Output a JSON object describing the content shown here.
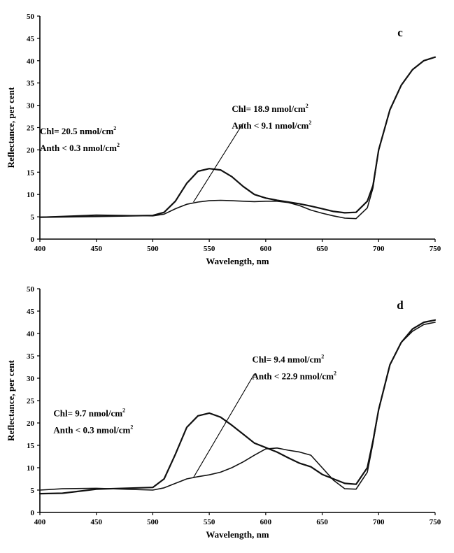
{
  "chart_data": [
    {
      "type": "line",
      "panel_letter": "c",
      "xlabel": "Wavelength, nm",
      "ylabel": "Reflectance, per cent",
      "xlim": [
        400,
        750
      ],
      "ylim": [
        0,
        50
      ],
      "xticks": [
        400,
        450,
        500,
        550,
        600,
        650,
        700,
        750
      ],
      "yticks": [
        0,
        5,
        10,
        15,
        20,
        25,
        30,
        35,
        40,
        45,
        50
      ],
      "grid": false,
      "annotations": [
        {
          "chl": "Chl= 20.5 nmol/cm",
          "anth": "Anth < 0.3 nmol/cm",
          "sup": "2",
          "x": 400,
          "y": 23.5
        },
        {
          "chl": "Chl= 18.9 nmol/cm",
          "anth": "Anth < 9.1 nmol/cm",
          "sup": "2",
          "x": 570,
          "y": 28.5
        }
      ],
      "series": [
        {
          "x": [
            400,
            450,
            500,
            510,
            520,
            530,
            540,
            550,
            560,
            570,
            580,
            590,
            600,
            610,
            620,
            630,
            640,
            650,
            660,
            670,
            680,
            690,
            695,
            700,
            710,
            720,
            730,
            740,
            750
          ],
          "y": [
            4.9,
            5.1,
            5.3,
            6.0,
            8.5,
            12.5,
            15.2,
            15.8,
            15.5,
            14.0,
            11.8,
            10.0,
            9.2,
            8.7,
            8.3,
            7.9,
            7.4,
            6.8,
            6.2,
            5.9,
            6.0,
            8.5,
            12.0,
            20.0,
            29.0,
            34.5,
            38.0,
            40.0,
            40.8
          ],
          "thin": false
        },
        {
          "x": [
            400,
            450,
            500,
            510,
            520,
            530,
            540,
            550,
            560,
            570,
            580,
            590,
            600,
            610,
            620,
            630,
            640,
            650,
            660,
            670,
            680,
            690,
            695,
            700,
            710,
            720,
            730,
            740,
            750
          ],
          "y": [
            4.9,
            5.4,
            5.2,
            5.6,
            6.8,
            7.8,
            8.3,
            8.6,
            8.7,
            8.6,
            8.5,
            8.4,
            8.5,
            8.5,
            8.2,
            7.5,
            6.5,
            5.8,
            5.2,
            4.7,
            4.6,
            7.0,
            11.5,
            20.0,
            29.0,
            34.5,
            38.0,
            40.0,
            40.8
          ],
          "thin": true
        }
      ],
      "leader": {
        "x1": 536,
        "y1": 8.3,
        "x2": 580,
        "y2": 26.0
      }
    },
    {
      "type": "line",
      "panel_letter": "d",
      "xlabel": "Wavelength, nm",
      "ylabel": "Reflectance, per cent",
      "xlim": [
        400,
        750
      ],
      "ylim": [
        0,
        50
      ],
      "xticks": [
        400,
        450,
        500,
        550,
        600,
        650,
        700,
        750
      ],
      "yticks": [
        0,
        5,
        10,
        15,
        20,
        25,
        30,
        35,
        40,
        45,
        50
      ],
      "grid": false,
      "annotations": [
        {
          "chl": "Chl= 9.7 nmol/cm",
          "anth": "Anth < 0.3 nmol/cm",
          "sup": "2",
          "x": 412,
          "y": 21.5
        },
        {
          "chl": "Chl= 9.4 nmol/cm",
          "anth": "Anth < 22.9 nmol/cm",
          "sup": "2",
          "x": 588,
          "y": 33.5
        }
      ],
      "series": [
        {
          "x": [
            400,
            420,
            450,
            500,
            510,
            520,
            530,
            540,
            550,
            560,
            570,
            580,
            590,
            600,
            610,
            620,
            630,
            640,
            650,
            660,
            670,
            680,
            690,
            695,
            700,
            710,
            720,
            730,
            740,
            750
          ],
          "y": [
            4.2,
            4.3,
            5.2,
            5.6,
            7.5,
            13.0,
            19.0,
            21.6,
            22.2,
            21.3,
            19.5,
            17.5,
            15.5,
            14.5,
            13.5,
            12.2,
            11.0,
            10.2,
            8.5,
            7.5,
            6.5,
            6.3,
            10.0,
            16.0,
            23.0,
            33.0,
            38.0,
            41.0,
            42.5,
            43.0
          ],
          "thin": false
        },
        {
          "x": [
            400,
            420,
            450,
            500,
            510,
            520,
            530,
            540,
            550,
            560,
            570,
            580,
            590,
            600,
            610,
            620,
            630,
            640,
            650,
            660,
            670,
            680,
            690,
            695,
            700,
            710,
            720,
            730,
            740,
            750
          ],
          "y": [
            5.0,
            5.3,
            5.4,
            5.0,
            5.5,
            6.5,
            7.5,
            8.0,
            8.4,
            9.0,
            10.0,
            11.3,
            12.8,
            14.2,
            14.4,
            13.9,
            13.5,
            12.8,
            10.0,
            7.2,
            5.3,
            5.2,
            9.0,
            15.5,
            23.0,
            33.0,
            38.0,
            40.5,
            42.0,
            42.5
          ],
          "thin": true
        }
      ],
      "leader": {
        "x1": 536,
        "y1": 7.8,
        "x2": 590,
        "y2": 31.0
      }
    }
  ]
}
